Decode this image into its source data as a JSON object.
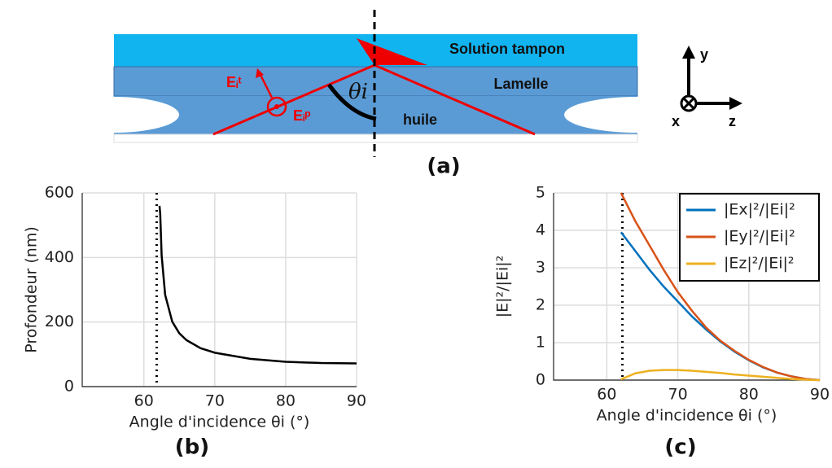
{
  "diagram": {
    "buffer": "Solution tampon",
    "coverslip": "Lamelle",
    "oil": "huile",
    "theta": "θi",
    "field_t": "Eᵢᵗ",
    "field_p": "Eᵢᵖ",
    "axis_y": "y",
    "axis_x": "x",
    "axis_z": "z",
    "caption": "(a)"
  },
  "chart_data": [
    {
      "type": "line",
      "caption": "(b)",
      "xlabel": "Angle d'incidence θi (°)",
      "ylabel": "Profondeur (nm)",
      "xlim": [
        51.3,
        90
      ],
      "xticks": [
        60,
        70,
        80,
        90
      ],
      "ylim": [
        0,
        600
      ],
      "yticks": [
        0,
        200,
        400,
        600
      ],
      "grid": true,
      "critical_angle": 61.8,
      "x": [
        62.2,
        62.3,
        62.5,
        63,
        64,
        65,
        66,
        68,
        70,
        75,
        80,
        85,
        90
      ],
      "series": [
        {
          "color": "#000000",
          "values": [
            560,
            536,
            407,
            284,
            201,
            165,
            144,
            119,
            105,
            86,
            77,
            73,
            72
          ]
        }
      ]
    },
    {
      "type": "line",
      "caption": "(c)",
      "xlabel": "Angle d'incidence θi (°)",
      "ylabel": "|E|²/|Ei|²",
      "xlim": [
        52.5,
        90
      ],
      "xticks": [
        60,
        70,
        80,
        90
      ],
      "ylim": [
        0,
        5
      ],
      "yticks": [
        0,
        1,
        2,
        3,
        4,
        5
      ],
      "grid": true,
      "critical_angle": 62.2,
      "legend": "upper right",
      "x": [
        62,
        64,
        66,
        68,
        70,
        72,
        74,
        76,
        78,
        80,
        82,
        84,
        86,
        88,
        90
      ],
      "series": [
        {
          "name": "|Ex|²/|Ei|²",
          "color": "#0072bd",
          "values": [
            3.95,
            3.45,
            2.95,
            2.5,
            2.1,
            1.7,
            1.35,
            1.03,
            0.76,
            0.53,
            0.34,
            0.2,
            0.1,
            0.03,
            0
          ]
        },
        {
          "name": "|Ey|²/|Ei|²",
          "color": "#d95319",
          "values": [
            5.0,
            4.25,
            3.6,
            2.95,
            2.35,
            1.85,
            1.4,
            1.05,
            0.78,
            0.54,
            0.35,
            0.2,
            0.1,
            0.03,
            0
          ]
        },
        {
          "name": "|Ez|²/|Ei|²",
          "color": "#edb120",
          "values": [
            0.02,
            0.18,
            0.25,
            0.27,
            0.27,
            0.25,
            0.22,
            0.19,
            0.15,
            0.12,
            0.09,
            0.06,
            0.03,
            0.01,
            0
          ]
        }
      ]
    }
  ]
}
